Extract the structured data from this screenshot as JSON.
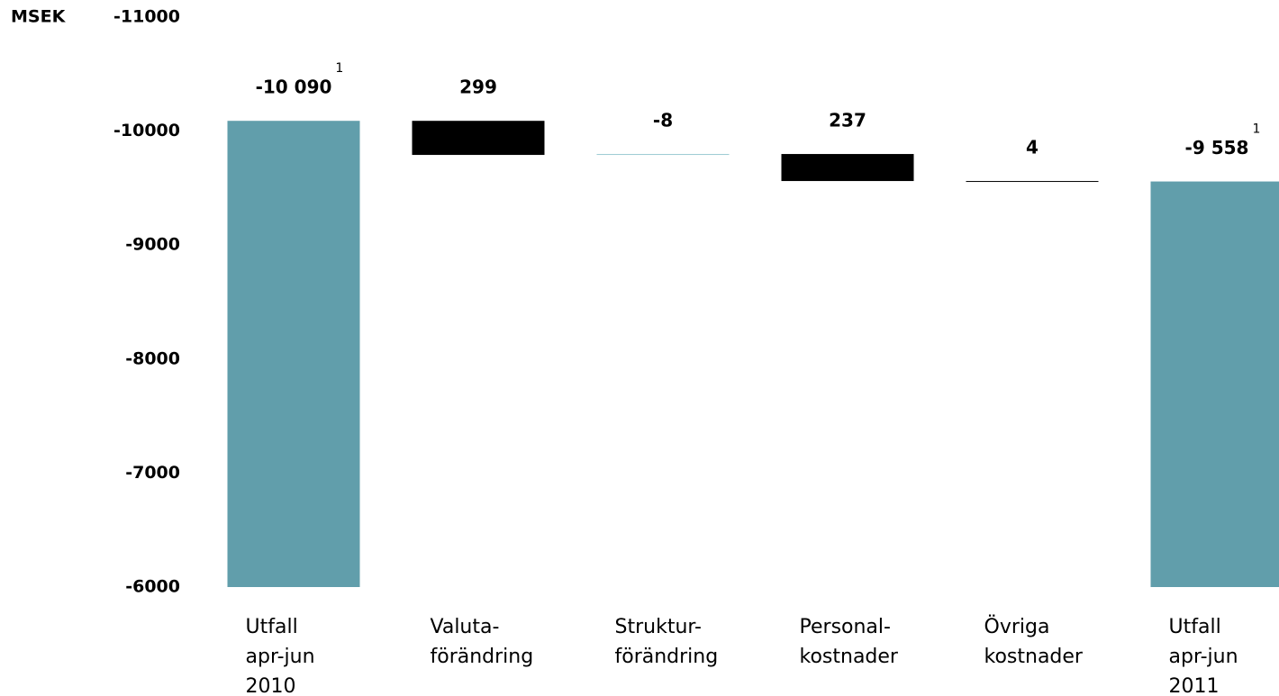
{
  "chart_data": {
    "type": "waterfall",
    "y_label": "MSEK",
    "categories": [
      [
        "Utfall",
        "apr-jun",
        "2010"
      ],
      [
        "Valuta-",
        "förändring"
      ],
      [
        "Struktur-",
        "förändring"
      ],
      [
        "Personal-",
        "kostnader"
      ],
      [
        "Övriga",
        "kostnader"
      ],
      [
        "Utfall",
        "apr-jun",
        "2011"
      ]
    ],
    "values": [
      -10090,
      299,
      -8,
      237,
      4,
      -9558
    ],
    "value_labels": [
      "-10 090",
      "299",
      "-8",
      "237",
      "4",
      "-9 558"
    ],
    "is_total": [
      true,
      false,
      false,
      false,
      false,
      true
    ],
    "footnote_marks": [
      "1",
      null,
      null,
      null,
      null,
      "1"
    ],
    "colors": [
      "#619eab",
      "#000000",
      "#9ccbd3",
      "#000000",
      "#000000",
      "#619eab"
    ],
    "ylim": [
      -6000,
      -11000
    ],
    "yticks": [
      -11000,
      -10000,
      -9000,
      -8000,
      -7000,
      -6000
    ],
    "grid": false
  }
}
